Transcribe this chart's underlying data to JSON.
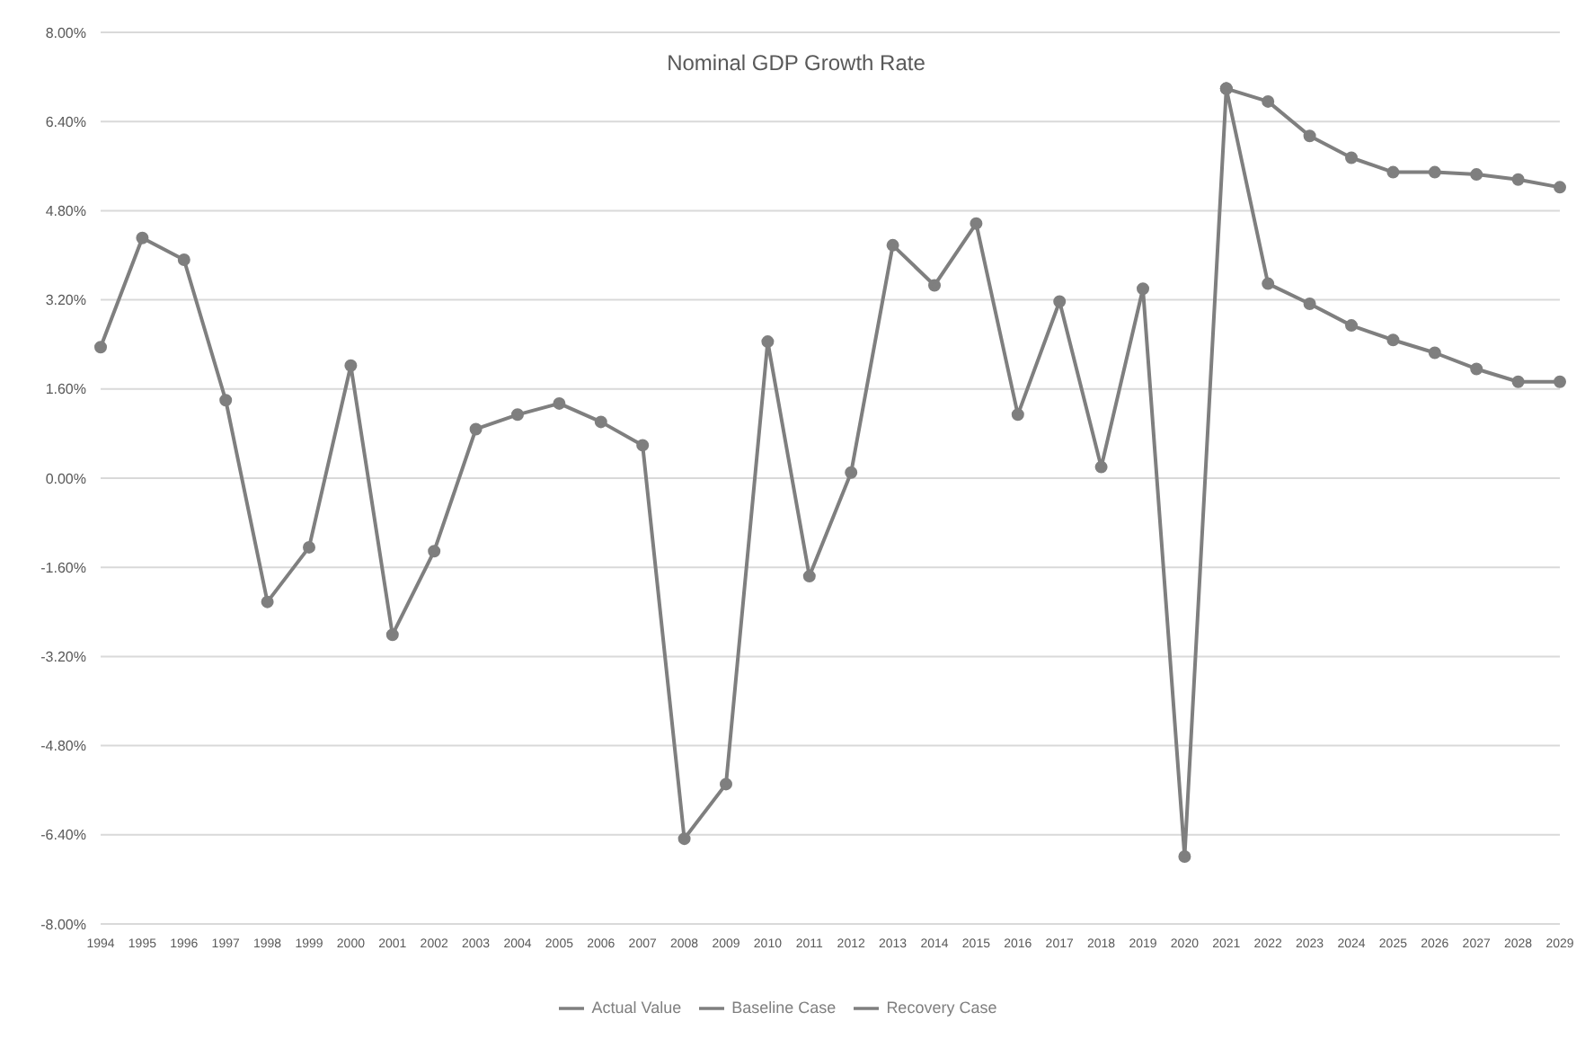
{
  "chart_data": {
    "type": "line",
    "title": "Nominal GDP Growth Rate",
    "categories": [
      "1994",
      "1995",
      "1996",
      "1997",
      "1998",
      "1999",
      "2000",
      "2001",
      "2002",
      "2003",
      "2004",
      "2005",
      "2006",
      "2007",
      "2008",
      "2009",
      "2010",
      "2011",
      "2012",
      "2013",
      "2014",
      "2015",
      "2016",
      "2017",
      "2018",
      "2019",
      "2020",
      "2021",
      "2022",
      "2023",
      "2024",
      "2025",
      "2026",
      "2027",
      "2028",
      "2029"
    ],
    "series": [
      {
        "name": "Actual Value",
        "color": "#7f7f7f",
        "values": [
          2.35,
          4.31,
          3.92,
          1.4,
          -2.22,
          -1.24,
          2.02,
          -2.81,
          -1.31,
          0.88,
          1.14,
          1.34,
          1.01,
          0.59,
          -6.47,
          -5.49,
          2.45,
          -1.76,
          0.1,
          4.18,
          3.46,
          4.57,
          1.14,
          3.17,
          0.2,
          3.4,
          -6.79,
          6.99,
          null,
          null,
          null,
          null,
          null,
          null,
          null,
          null
        ]
      },
      {
        "name": "Recovery Case",
        "color": "#7f7f7f",
        "values": [
          null,
          null,
          null,
          null,
          null,
          null,
          null,
          null,
          null,
          null,
          null,
          null,
          null,
          null,
          null,
          null,
          null,
          null,
          null,
          null,
          null,
          null,
          null,
          null,
          null,
          null,
          null,
          6.99,
          6.76,
          6.14,
          5.75,
          5.49,
          5.49,
          5.45,
          5.36,
          5.22
        ]
      },
      {
        "name": "Baseline Case",
        "color": "#7f7f7f",
        "values": [
          null,
          null,
          null,
          null,
          null,
          null,
          null,
          null,
          null,
          null,
          null,
          null,
          null,
          null,
          null,
          null,
          null,
          null,
          null,
          null,
          null,
          null,
          null,
          null,
          null,
          null,
          null,
          6.99,
          3.49,
          3.13,
          2.74,
          2.48,
          2.25,
          1.96,
          1.73,
          1.73
        ]
      }
    ],
    "ylim": [
      -8,
      8
    ],
    "yticks": [
      {
        "value": -8,
        "label": "-8.00%"
      },
      {
        "value": -6.4,
        "label": "-6.40%"
      },
      {
        "value": -4.8,
        "label": "-4.80%"
      },
      {
        "value": -3.2,
        "label": "-3.20%"
      },
      {
        "value": -1.6,
        "label": "-1.60%"
      },
      {
        "value": 0,
        "label": "0.00%"
      },
      {
        "value": 1.6,
        "label": "1.60%"
      },
      {
        "value": 3.2,
        "label": "3.20%"
      },
      {
        "value": 4.8,
        "label": "4.80%"
      },
      {
        "value": 6.4,
        "label": "6.40%"
      },
      {
        "value": 8,
        "label": "8.00%"
      }
    ],
    "grid": "y",
    "legend": "bottom",
    "marker": "circle",
    "line_style": "solid"
  }
}
